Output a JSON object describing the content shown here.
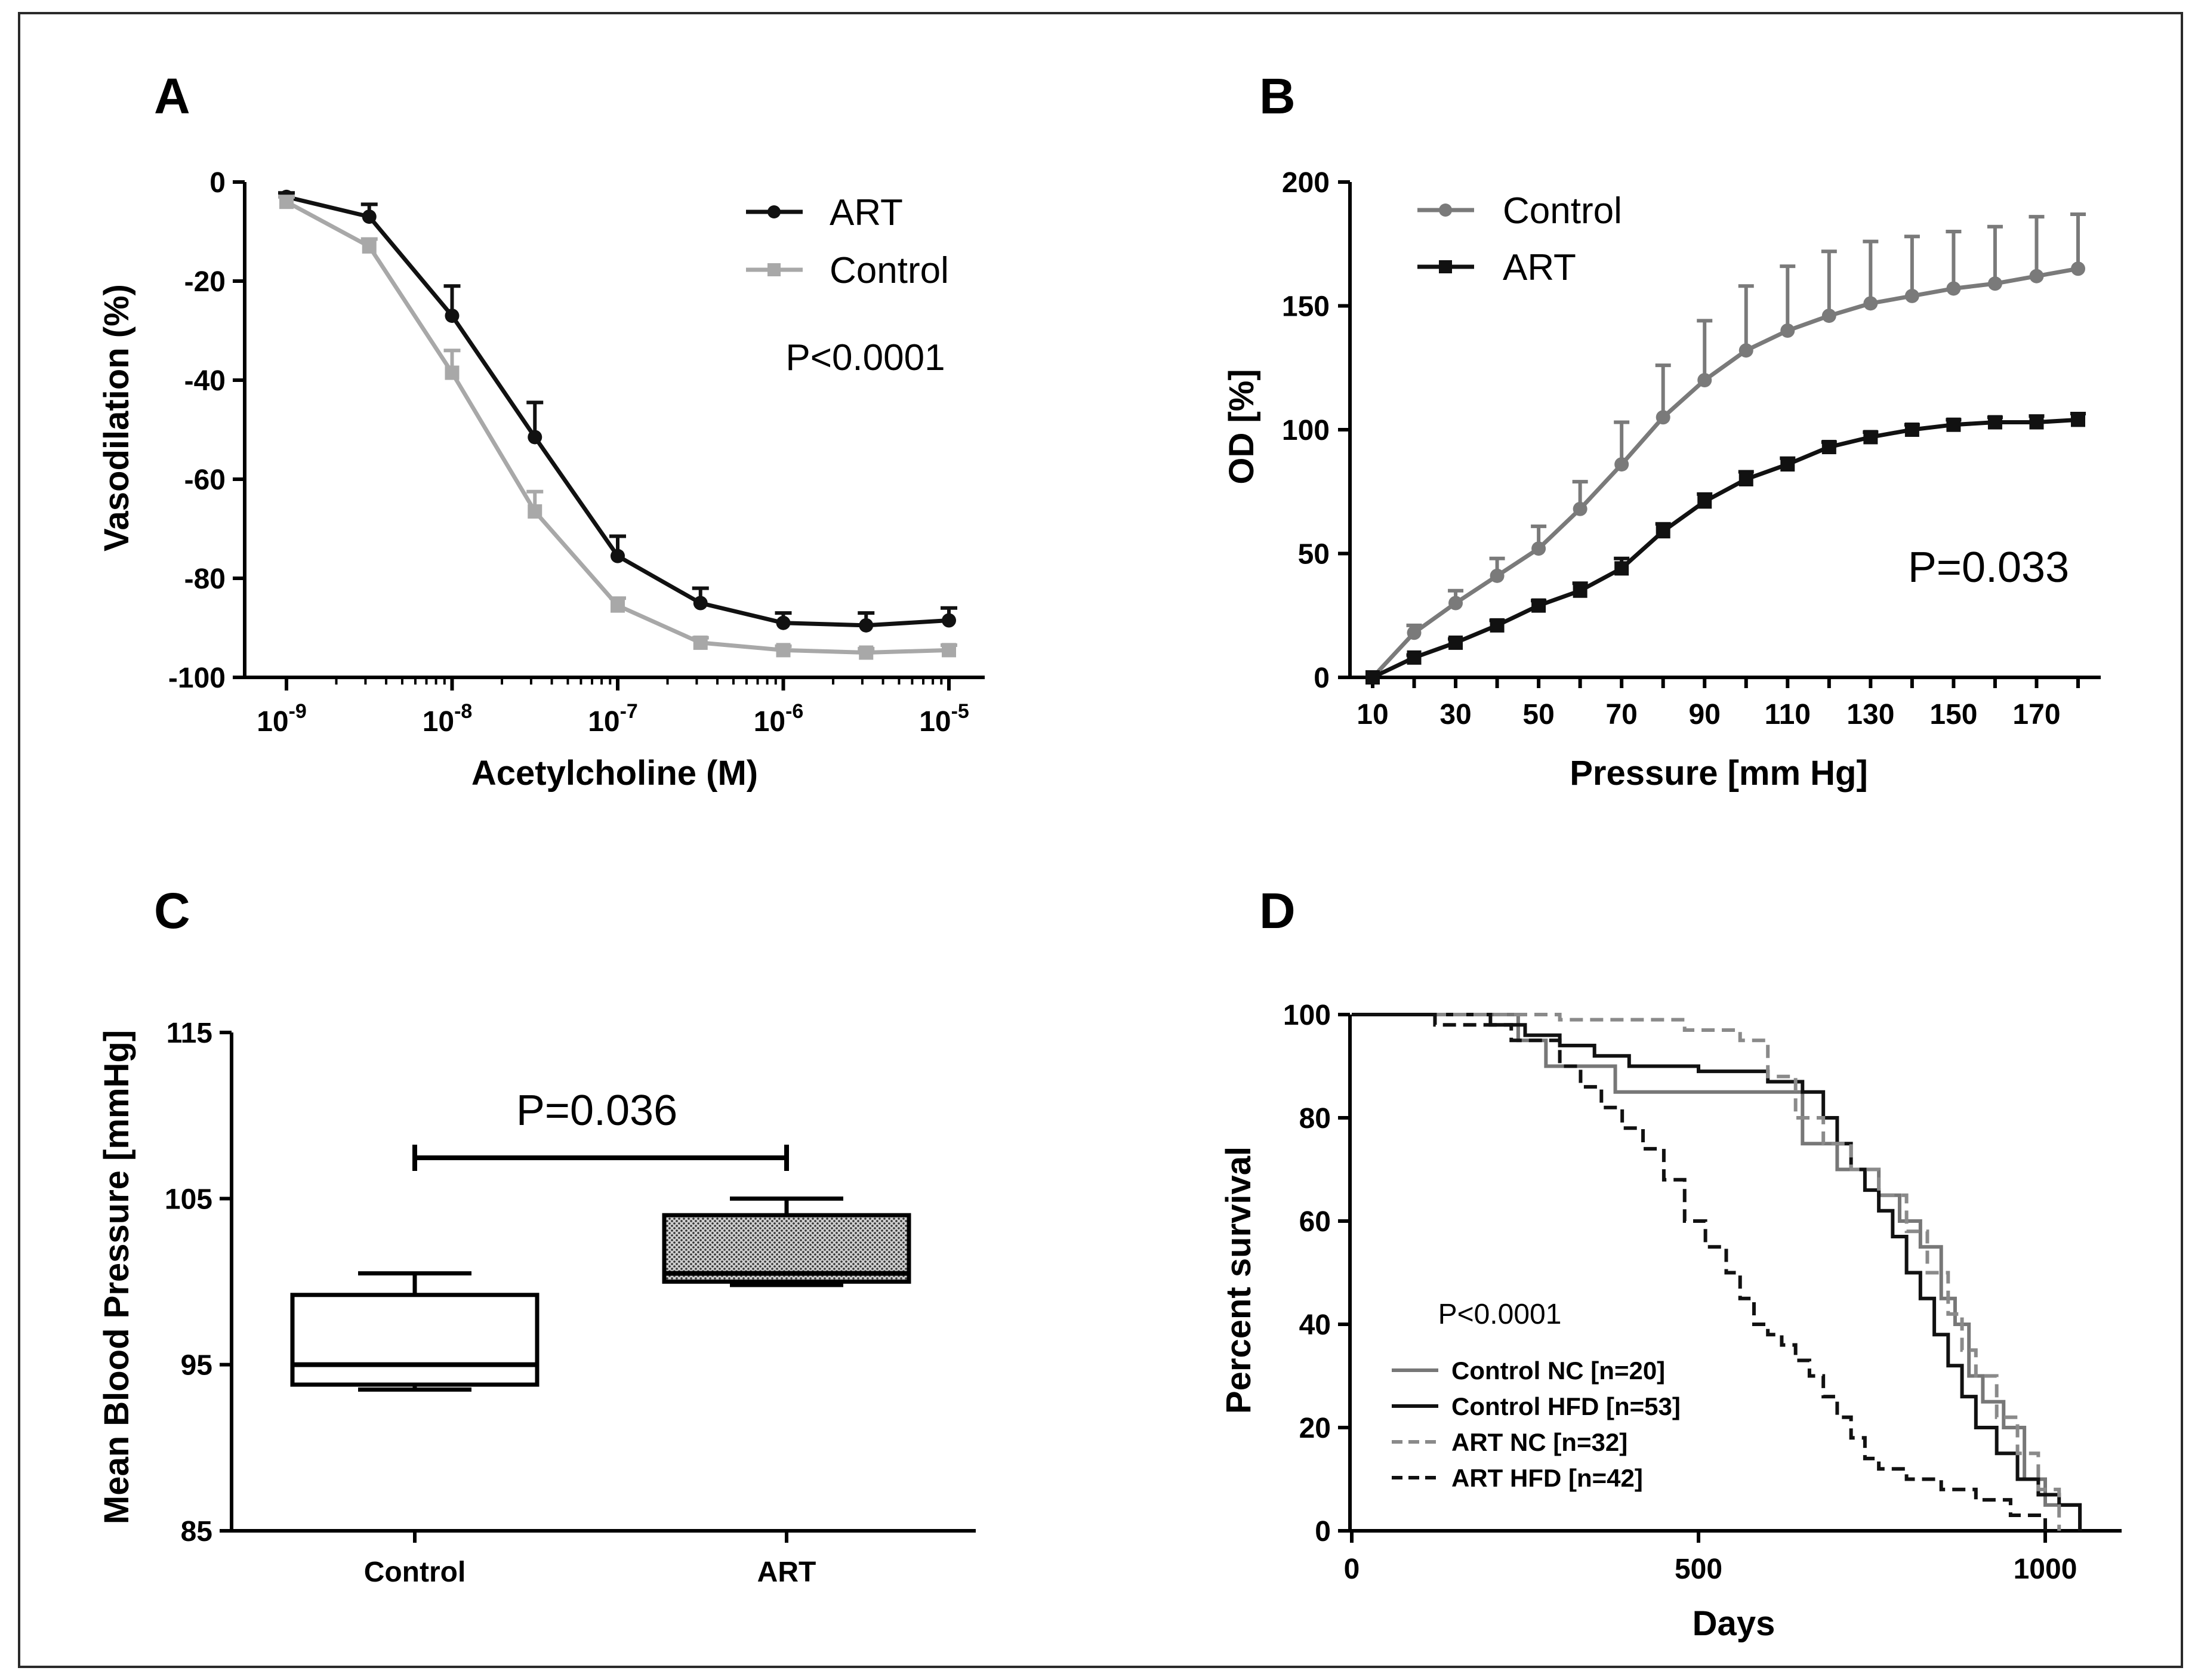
{
  "chart_data": [
    {
      "panel": "A",
      "type": "line",
      "xlabel": "Acetylcholine (M)",
      "ylabel": "Vasodilation (%)",
      "xscale": "log",
      "xlim_exp": [
        -9,
        -5
      ],
      "ylim": [
        -100,
        0
      ],
      "yticks": [
        "0",
        "-20",
        "-40",
        "-60",
        "-80",
        "-100"
      ],
      "xticks": [
        {
          "base": "10",
          "exp": "-9"
        },
        {
          "base": "10",
          "exp": "-8"
        },
        {
          "base": "10",
          "exp": "-7"
        },
        {
          "base": "10",
          "exp": "-6"
        },
        {
          "base": "10",
          "exp": "-5"
        }
      ],
      "annotation": "P<0.0001",
      "legend_position": "top-right",
      "series": [
        {
          "name": "ART",
          "color": "#111111",
          "marker": "circle",
          "x_exp": [
            -9,
            -8.5,
            -8,
            -7.5,
            -7,
            -6.5,
            -6,
            -5.5,
            -5
          ],
          "values": [
            -3,
            -7,
            -27,
            -51.5,
            -75.5,
            -85,
            -89,
            -89.5,
            -88.5
          ],
          "err": [
            0.8,
            2.5,
            6,
            7,
            4,
            3,
            2,
            2.5,
            2.5
          ]
        },
        {
          "name": "Control",
          "color": "#a8a8a8",
          "marker": "square",
          "x_exp": [
            -9,
            -8.5,
            -8,
            -7.5,
            -7,
            -6.5,
            -6,
            -5.5,
            -5
          ],
          "values": [
            -4,
            -13,
            -38.5,
            -66.5,
            -85.5,
            -93,
            -94.5,
            -95,
            -94.5
          ],
          "err": [
            1,
            1.5,
            4.5,
            4,
            1.5,
            1,
            0.8,
            0.8,
            1
          ]
        }
      ]
    },
    {
      "panel": "B",
      "type": "line",
      "xlabel": "Pressure [mm Hg]",
      "ylabel": "OD [%]",
      "xlim": [
        10,
        180
      ],
      "ylim": [
        0,
        200
      ],
      "xticks": [
        "10",
        "30",
        "50",
        "70",
        "90",
        "110",
        "130",
        "150",
        "170"
      ],
      "yticks": [
        "0",
        "50",
        "100",
        "150",
        "200"
      ],
      "annotation": "P=0.033",
      "legend_position": "top-left",
      "series": [
        {
          "name": "Control",
          "color": "#7a7a7a",
          "marker": "circle",
          "x": [
            10,
            20,
            30,
            40,
            50,
            60,
            70,
            80,
            90,
            100,
            110,
            120,
            130,
            140,
            150,
            160,
            170,
            180
          ],
          "values": [
            0,
            18,
            30,
            41,
            52,
            68,
            86,
            105,
            120,
            132,
            140,
            146,
            151,
            154,
            157,
            159,
            162,
            165
          ],
          "err": [
            0,
            3,
            5,
            7,
            9,
            11,
            17,
            21,
            24,
            26,
            26,
            26,
            25,
            24,
            23,
            23,
            24,
            22
          ]
        },
        {
          "name": "ART",
          "color": "#111111",
          "marker": "square",
          "x": [
            10,
            20,
            30,
            40,
            50,
            60,
            70,
            80,
            90,
            100,
            110,
            120,
            130,
            140,
            150,
            160,
            170,
            180
          ],
          "values": [
            0,
            8,
            14,
            21,
            29,
            35,
            44,
            59,
            71,
            80,
            86,
            93,
            97,
            100,
            102,
            103,
            103,
            104
          ],
          "err": [
            0,
            1,
            1.5,
            2,
            2,
            3,
            4,
            3,
            3,
            3,
            2.5,
            2,
            2,
            2,
            2,
            2,
            2.5,
            2.5
          ]
        }
      ]
    },
    {
      "panel": "C",
      "type": "box",
      "ylabel": "Mean Blood Pressure [mmHg]",
      "ylim": [
        85,
        115
      ],
      "yticks": [
        "115",
        "105",
        "95",
        "85"
      ],
      "categories": [
        "Control",
        "ART"
      ],
      "boxes": [
        {
          "name": "Control",
          "min": 93.5,
          "q1": 93.8,
          "median": 95,
          "q3": 99.2,
          "max": 100.5,
          "fill": "#ffffff"
        },
        {
          "name": "ART",
          "min": 99.8,
          "q1": 100,
          "median": 100.5,
          "q3": 104,
          "max": 105,
          "fill": "#9a9a9a"
        }
      ],
      "annotation": "P=0.036"
    },
    {
      "panel": "D",
      "type": "line",
      "subtype": "kaplan-meier",
      "xlabel": "Days",
      "ylabel": "Percent survival",
      "xlim": [
        0,
        1100
      ],
      "ylim": [
        0,
        100
      ],
      "xticks": [
        "0",
        "500",
        "1000"
      ],
      "yticks": [
        "0",
        "20",
        "40",
        "60",
        "80",
        "100"
      ],
      "annotation": "P<0.0001",
      "legend_position": "bottom-left",
      "series": [
        {
          "name": "Control NC [n=20]",
          "color": "#777777",
          "dash": "solid",
          "x": [
            0,
            240,
            280,
            380,
            650,
            700,
            760,
            790,
            820,
            850,
            870,
            890,
            910,
            940,
            970,
            1000,
            1050
          ],
          "values": [
            100,
            95,
            90,
            85,
            75,
            70,
            65,
            60,
            55,
            45,
            40,
            30,
            25,
            20,
            10,
            5,
            0
          ]
        },
        {
          "name": "Control HFD [n=53]",
          "color": "#111111",
          "dash": "solid",
          "x": [
            0,
            200,
            250,
            300,
            350,
            400,
            500,
            600,
            650,
            680,
            700,
            720,
            740,
            760,
            780,
            800,
            820,
            840,
            860,
            880,
            900,
            930,
            960,
            990,
            1020,
            1050
          ],
          "values": [
            100,
            98,
            96,
            94,
            92,
            90,
            89,
            87,
            85,
            80,
            75,
            70,
            66,
            62,
            57,
            50,
            45,
            38,
            32,
            26,
            20,
            15,
            10,
            7,
            5,
            0
          ]
        },
        {
          "name": "ART NC [n=32]",
          "color": "#8a8a8a",
          "dash": "dashed",
          "x": [
            0,
            300,
            480,
            560,
            600,
            640,
            680,
            720,
            760,
            800,
            830,
            860,
            880,
            900,
            930,
            960,
            990,
            1020
          ],
          "values": [
            100,
            99,
            97,
            95,
            88,
            80,
            75,
            70,
            65,
            58,
            50,
            42,
            35,
            30,
            22,
            15,
            8,
            0
          ]
        },
        {
          "name": "ART HFD [n=42]",
          "color": "#111111",
          "dash": "dashed",
          "x": [
            0,
            120,
            230,
            300,
            330,
            360,
            390,
            420,
            450,
            480,
            510,
            540,
            560,
            580,
            600,
            620,
            640,
            660,
            680,
            700,
            720,
            740,
            760,
            800,
            850,
            900,
            950,
            1000
          ],
          "values": [
            100,
            98,
            95,
            90,
            86,
            82,
            78,
            74,
            68,
            60,
            55,
            50,
            45,
            40,
            38,
            36,
            33,
            30,
            26,
            22,
            18,
            14,
            12,
            10,
            8,
            6,
            3,
            0
          ]
        }
      ]
    }
  ]
}
